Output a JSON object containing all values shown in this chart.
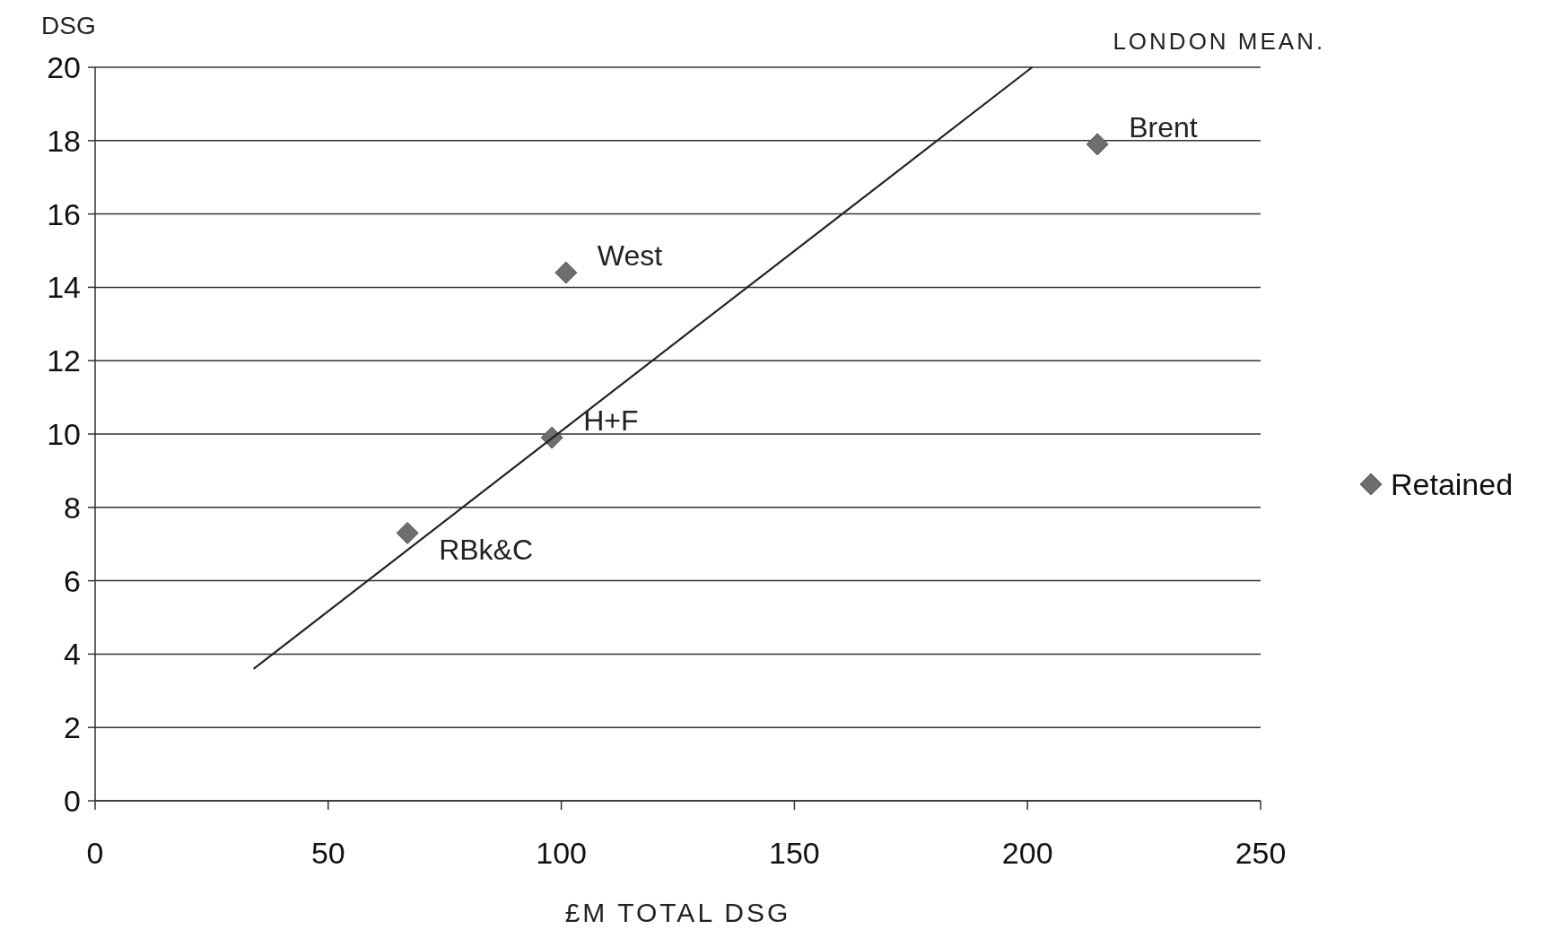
{
  "chart_data": {
    "type": "scatter",
    "xlabel": "£M TOTAL DSG",
    "ylabel": "DSG",
    "xlim": [
      0,
      250
    ],
    "xticks": [
      0,
      50,
      100,
      150,
      200,
      250
    ],
    "ylim": [
      0,
      20
    ],
    "yticks": [
      0,
      2,
      4,
      6,
      8,
      10,
      12,
      14,
      16,
      18,
      20
    ],
    "grid": "y",
    "legend": "right",
    "marker": "diamond",
    "series": [
      {
        "name": "Retained",
        "type": "scatter",
        "color": "#6e6e6e",
        "x": [
          67,
          98,
          101,
          215
        ],
        "values": [
          7.3,
          9.9,
          14.4,
          17.9
        ]
      },
      {
        "name": "LONDON MEAN.",
        "type": "line",
        "color": "#222222",
        "marker": "none",
        "x": [
          34,
          201
        ],
        "values": [
          3.6,
          20
        ]
      }
    ],
    "annotations": [
      {
        "text": "RBk&C",
        "x": 67,
        "y": 7.3
      },
      {
        "text": "H+F",
        "x": 98,
        "y": 9.9
      },
      {
        "text": "West",
        "x": 101,
        "y": 14.4
      },
      {
        "text": "Brent",
        "x": 215,
        "y": 17.9
      }
    ]
  }
}
